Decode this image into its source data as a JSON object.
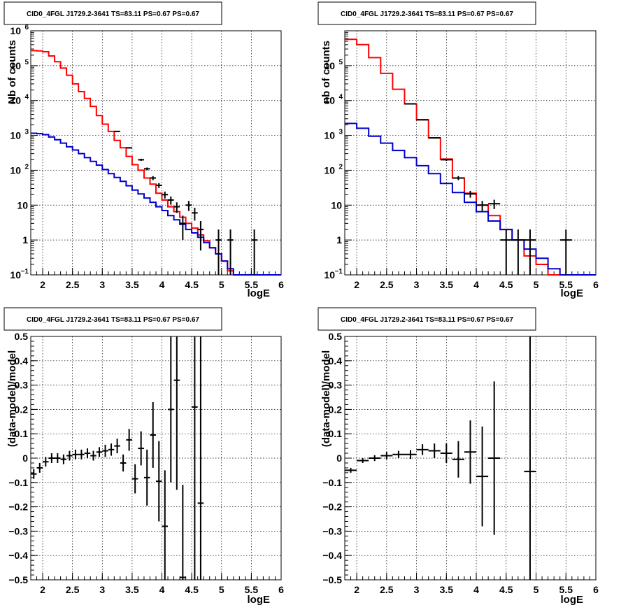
{
  "chart_data": [
    {
      "type": "step-histogram",
      "title": "CID0_4FGL J1729.2-3641 TS=83.11 PS=0.67 PS=0.67",
      "xlabel": "logE",
      "ylabel": "Nb of counts",
      "xlim": [
        1.8,
        6.0
      ],
      "ylim": [
        0.1,
        1000000
      ],
      "yscale": "log",
      "grid": true,
      "x_ticks": [
        "2",
        "2.5",
        "3",
        "3.5",
        "4",
        "4.5",
        "5",
        "5.5",
        "6"
      ],
      "y_ticks": [
        {
          "value": 0.1,
          "label": "10",
          "exp": "−1"
        },
        {
          "value": 1,
          "label": "1",
          "exp": ""
        },
        {
          "value": 10,
          "label": "10",
          "exp": ""
        },
        {
          "value": 100,
          "label": "10",
          "exp": "2"
        },
        {
          "value": 1000,
          "label": "10",
          "exp": "3"
        },
        {
          "value": 10000,
          "label": "10",
          "exp": "4"
        },
        {
          "value": 100000,
          "label": "10",
          "exp": "5"
        },
        {
          "value": 1000000,
          "label": "10",
          "exp": "6"
        }
      ],
      "bin_edges": [
        1.8,
        1.9,
        2.0,
        2.1,
        2.2,
        2.3,
        2.4,
        2.5,
        2.6,
        2.7,
        2.8,
        2.9,
        3.0,
        3.1,
        3.2,
        3.3,
        3.4,
        3.5,
        3.6,
        3.7,
        3.8,
        3.9,
        4.0,
        4.1,
        4.2,
        4.3,
        4.4,
        4.5,
        4.6,
        4.7,
        4.8,
        4.9,
        5.0,
        5.1,
        5.2,
        5.3,
        5.4,
        5.5,
        5.6,
        5.7,
        5.8,
        5.9,
        6.0
      ],
      "series": [
        {
          "color": "#ff0000",
          "values": [
            270000,
            265000,
            250000,
            190000,
            130000,
            85000,
            53000,
            30000,
            18000,
            11500,
            6800,
            3700,
            2100,
            1300,
            720,
            440,
            250,
            145,
            100,
            60,
            40,
            22,
            14,
            9,
            6.5,
            4.5,
            3,
            2.2,
            1.4,
            0.95,
            0.6,
            0.4,
            0.25,
            0.13,
            0.1,
            0.1,
            0.1,
            0.1,
            0.1,
            0.1,
            0.1,
            0.1
          ]
        },
        {
          "color": "#0000cc",
          "values": [
            1150,
            1120,
            1050,
            900,
            750,
            600,
            470,
            380,
            300,
            230,
            180,
            140,
            105,
            80,
            62,
            48,
            36,
            27,
            21,
            16,
            12,
            9,
            7,
            5,
            3.8,
            2.8,
            2,
            1.6,
            1.2,
            0.85,
            0.6,
            0.4,
            0.25,
            0.15,
            0.1,
            0.1,
            0.1,
            0.1,
            0.1,
            0.1,
            0.1,
            0.1
          ]
        }
      ],
      "points": [
        {
          "x": 3.25,
          "y": 1300,
          "xerr": 0.05,
          "yerr": 36
        },
        {
          "x": 3.45,
          "y": 440,
          "xerr": 0.05,
          "yerr": 21
        },
        {
          "x": 3.65,
          "y": 200,
          "xerr": 0.05,
          "yerr": 14
        },
        {
          "x": 3.75,
          "y": 110,
          "xerr": 0.05,
          "yerr": 10
        },
        {
          "x": 3.85,
          "y": 60,
          "xerr": 0.05,
          "yerr": 8
        },
        {
          "x": 3.95,
          "y": 37,
          "xerr": 0.05,
          "yerr": 6
        },
        {
          "x": 4.05,
          "y": 20,
          "xerr": 0.05,
          "yerr": 4.5
        },
        {
          "x": 4.15,
          "y": 14,
          "xerr": 0.05,
          "yerr": 3.7
        },
        {
          "x": 4.25,
          "y": 9,
          "xerr": 0.05,
          "yerr": 3
        },
        {
          "x": 4.35,
          "y": 3,
          "xerr": 0.05,
          "yerr": 2
        },
        {
          "x": 4.45,
          "y": 10,
          "xerr": 0.05,
          "yerr": 3.2
        },
        {
          "x": 4.55,
          "y": 6,
          "xerr": 0.05,
          "yerr": 2.4
        },
        {
          "x": 4.65,
          "y": 2,
          "xerr": 0.05,
          "yerr": 1.5
        },
        {
          "x": 4.95,
          "y": 1,
          "xerr": 0.05,
          "yerr": 1
        },
        {
          "x": 5.15,
          "y": 1,
          "xerr": 0.05,
          "yerr": 1
        },
        {
          "x": 5.55,
          "y": 1,
          "xerr": 0.05,
          "yerr": 1
        }
      ]
    },
    {
      "type": "step-histogram",
      "title": "CID0_4FGL J1729.2-3641 TS=83.11 PS=0.67 PS=0.67",
      "xlabel": "logE",
      "ylabel": "nb of counts",
      "xlim": [
        1.8,
        6.0
      ],
      "ylim": [
        0.1,
        1000000
      ],
      "yscale": "log",
      "grid": true,
      "x_ticks": [
        "2",
        "2.5",
        "3",
        "3.5",
        "4",
        "4.5",
        "5",
        "5.5",
        "6"
      ],
      "y_ticks": [
        {
          "value": 0.1,
          "label": "10",
          "exp": "−1"
        },
        {
          "value": 1,
          "label": "1",
          "exp": ""
        },
        {
          "value": 10,
          "label": "10",
          "exp": ""
        },
        {
          "value": 100,
          "label": "10",
          "exp": "2"
        },
        {
          "value": 1000,
          "label": "10",
          "exp": "3"
        },
        {
          "value": 10000,
          "label": "10",
          "exp": "4"
        },
        {
          "value": 100000,
          "label": "10",
          "exp": "5"
        }
      ],
      "bin_edges": [
        1.8,
        2.0,
        2.2,
        2.4,
        2.6,
        2.8,
        3.0,
        3.2,
        3.4,
        3.6,
        3.8,
        4.0,
        4.2,
        4.4,
        4.6,
        4.8,
        5.0,
        5.2,
        5.4,
        5.6,
        5.8,
        6.0
      ],
      "series": [
        {
          "color": "#ff0000",
          "values": [
            570000,
            400000,
            170000,
            60000,
            21000,
            8000,
            2800,
            850,
            210,
            60,
            22,
            10,
            5,
            2,
            1,
            0.35,
            0.2,
            0.1,
            0.1,
            0.1,
            0.1
          ]
        },
        {
          "color": "#0000cc",
          "values": [
            2200,
            1600,
            950,
            600,
            370,
            230,
            135,
            80,
            42,
            23,
            12,
            6.5,
            3.5,
            2,
            1,
            0.55,
            0.3,
            0.15,
            0.1,
            0.1,
            0.1
          ]
        }
      ],
      "points": [
        {
          "x": 2.9,
          "y": 8000,
          "xerr": 0.1,
          "yerr": 90
        },
        {
          "x": 3.1,
          "y": 2800,
          "xerr": 0.1,
          "yerr": 53
        },
        {
          "x": 3.3,
          "y": 850,
          "xerr": 0.1,
          "yerr": 29
        },
        {
          "x": 3.5,
          "y": 200,
          "xerr": 0.1,
          "yerr": 14
        },
        {
          "x": 3.7,
          "y": 60,
          "xerr": 0.1,
          "yerr": 8
        },
        {
          "x": 3.9,
          "y": 21,
          "xerr": 0.1,
          "yerr": 4.6
        },
        {
          "x": 4.1,
          "y": 10,
          "xerr": 0.1,
          "yerr": 3.2
        },
        {
          "x": 4.3,
          "y": 11,
          "xerr": 0.1,
          "yerr": 3.3
        },
        {
          "x": 4.5,
          "y": 1,
          "xerr": 0.1,
          "yerr": 1
        },
        {
          "x": 4.7,
          "y": 1,
          "xerr": 0.1,
          "yerr": 1
        },
        {
          "x": 4.9,
          "y": 1,
          "xerr": 0.1,
          "yerr": 1
        },
        {
          "x": 5.5,
          "y": 1,
          "xerr": 0.1,
          "yerr": 1
        }
      ]
    },
    {
      "type": "scatter",
      "title": "CID0_4FGL J1729.2-3641 TS=83.11 PS=0.67 PS=0.67",
      "xlabel": "logE",
      "ylabel": "(data-model)/model",
      "xlim": [
        1.8,
        6.0
      ],
      "ylim": [
        -0.5,
        0.5
      ],
      "yscale": "linear",
      "grid": true,
      "x_ticks": [
        "2",
        "2.5",
        "3",
        "3.5",
        "4",
        "4.5",
        "5",
        "5.5",
        "6"
      ],
      "y_ticks": [
        "−0.5",
        "−0.4",
        "−0.3",
        "−0.2",
        "−0.1",
        "0",
        "0.1",
        "0.2",
        "0.3",
        "0.4",
        "0.5"
      ],
      "points": [
        {
          "x": 1.85,
          "y": -0.065,
          "xerr": 0.05,
          "yerr": 0.02
        },
        {
          "x": 1.95,
          "y": -0.04,
          "xerr": 0.05,
          "yerr": 0.02
        },
        {
          "x": 2.05,
          "y": -0.015,
          "xerr": 0.05,
          "yerr": 0.02
        },
        {
          "x": 2.15,
          "y": 0.0,
          "xerr": 0.05,
          "yerr": 0.02
        },
        {
          "x": 2.25,
          "y": 0.0,
          "xerr": 0.05,
          "yerr": 0.02
        },
        {
          "x": 2.35,
          "y": -0.005,
          "xerr": 0.05,
          "yerr": 0.02
        },
        {
          "x": 2.45,
          "y": 0.01,
          "xerr": 0.05,
          "yerr": 0.02
        },
        {
          "x": 2.55,
          "y": 0.015,
          "xerr": 0.05,
          "yerr": 0.02
        },
        {
          "x": 2.65,
          "y": 0.015,
          "xerr": 0.05,
          "yerr": 0.02
        },
        {
          "x": 2.75,
          "y": 0.02,
          "xerr": 0.05,
          "yerr": 0.02
        },
        {
          "x": 2.85,
          "y": 0.01,
          "xerr": 0.05,
          "yerr": 0.02
        },
        {
          "x": 2.95,
          "y": 0.025,
          "xerr": 0.05,
          "yerr": 0.02
        },
        {
          "x": 3.05,
          "y": 0.03,
          "xerr": 0.05,
          "yerr": 0.025
        },
        {
          "x": 3.15,
          "y": 0.035,
          "xerr": 0.05,
          "yerr": 0.025
        },
        {
          "x": 3.25,
          "y": 0.05,
          "xerr": 0.05,
          "yerr": 0.03
        },
        {
          "x": 3.35,
          "y": -0.02,
          "xerr": 0.05,
          "yerr": 0.035
        },
        {
          "x": 3.45,
          "y": 0.075,
          "xerr": 0.05,
          "yerr": 0.045
        },
        {
          "x": 3.55,
          "y": -0.085,
          "xerr": 0.05,
          "yerr": 0.06
        },
        {
          "x": 3.65,
          "y": 0.04,
          "xerr": 0.05,
          "yerr": 0.07
        },
        {
          "x": 3.75,
          "y": -0.08,
          "xerr": 0.05,
          "yerr": 0.115
        },
        {
          "x": 3.85,
          "y": 0.095,
          "xerr": 0.05,
          "yerr": 0.135
        },
        {
          "x": 3.95,
          "y": -0.095,
          "xerr": 0.05,
          "yerr": 0.165
        },
        {
          "x": 4.05,
          "y": -0.28,
          "xerr": 0.05,
          "yerr": 0.23
        },
        {
          "x": 4.15,
          "y": 0.2,
          "xerr": 0.05,
          "yerr": 0.3
        },
        {
          "x": 4.25,
          "y": 0.32,
          "xerr": 0.05,
          "yerr": 0.45
        },
        {
          "x": 4.35,
          "y": -0.49,
          "xerr": 0.05,
          "yerr": 0.38
        },
        {
          "x": 4.55,
          "y": 0.21,
          "xerr": 0.05,
          "yerr": 0.8
        },
        {
          "x": 4.65,
          "y": -0.185,
          "xerr": 0.05,
          "yerr": 0.9
        }
      ]
    },
    {
      "type": "scatter",
      "title": "CID0_4FGL J1729.2-3641 TS=83.11 PS=0.67 PS=0.67",
      "xlabel": "logE",
      "ylabel": "(data-model)/model",
      "xlim": [
        1.8,
        6.0
      ],
      "ylim": [
        -0.5,
        0.5
      ],
      "yscale": "linear",
      "grid": true,
      "x_ticks": [
        "2",
        "2.5",
        "3",
        "3.5",
        "4",
        "4.5",
        "5",
        "5.5",
        "6"
      ],
      "y_ticks": [
        "−0.5",
        "−0.4",
        "−0.3",
        "−0.2",
        "−0.1",
        "0",
        "0.1",
        "0.2",
        "0.3",
        "0.4",
        "0.5"
      ],
      "points": [
        {
          "x": 1.9,
          "y": -0.05,
          "xerr": 0.1,
          "yerr": 0.01
        },
        {
          "x": 2.1,
          "y": -0.01,
          "xerr": 0.1,
          "yerr": 0.01
        },
        {
          "x": 2.3,
          "y": 0.0,
          "xerr": 0.1,
          "yerr": 0.012
        },
        {
          "x": 2.5,
          "y": 0.01,
          "xerr": 0.1,
          "yerr": 0.015
        },
        {
          "x": 2.7,
          "y": 0.015,
          "xerr": 0.1,
          "yerr": 0.015
        },
        {
          "x": 2.9,
          "y": 0.015,
          "xerr": 0.1,
          "yerr": 0.018
        },
        {
          "x": 3.1,
          "y": 0.035,
          "xerr": 0.1,
          "yerr": 0.022
        },
        {
          "x": 3.3,
          "y": 0.03,
          "xerr": 0.1,
          "yerr": 0.03
        },
        {
          "x": 3.5,
          "y": 0.02,
          "xerr": 0.1,
          "yerr": 0.04
        },
        {
          "x": 3.7,
          "y": -0.005,
          "xerr": 0.1,
          "yerr": 0.075
        },
        {
          "x": 3.9,
          "y": 0.025,
          "xerr": 0.1,
          "yerr": 0.13
        },
        {
          "x": 4.1,
          "y": -0.075,
          "xerr": 0.1,
          "yerr": 0.205
        },
        {
          "x": 4.3,
          "y": 0.0,
          "xerr": 0.1,
          "yerr": 0.315
        },
        {
          "x": 4.9,
          "y": -0.055,
          "xerr": 0.1,
          "yerr": 0.7
        }
      ]
    }
  ]
}
